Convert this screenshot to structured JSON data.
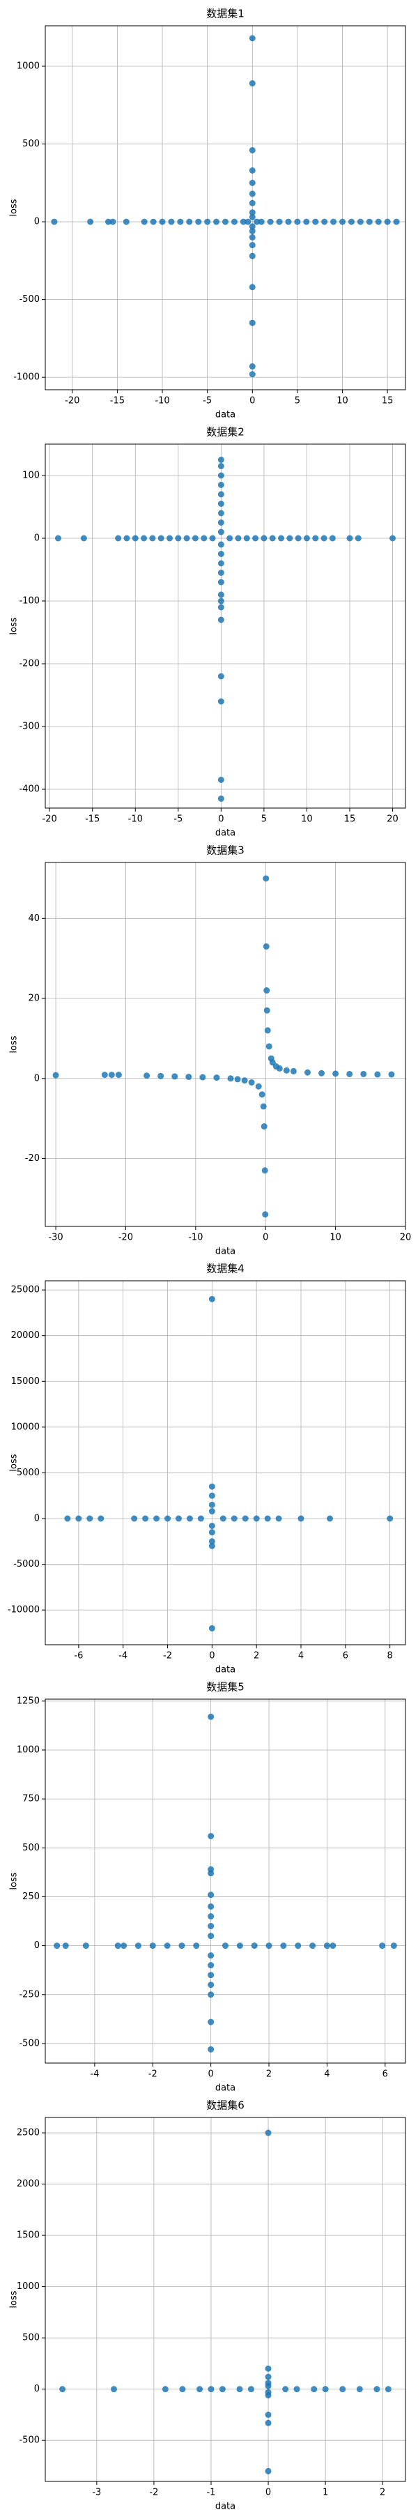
{
  "chart_data": [
    {
      "type": "scatter",
      "title": "数据集1",
      "xlabel": "data",
      "ylabel": "loss",
      "color": "#1f77b4",
      "grid": true,
      "x": [
        -22,
        -18,
        -16,
        -15.5,
        -14,
        -12,
        -11,
        -10,
        -9,
        -8,
        -7,
        -6,
        -5,
        -4,
        -3,
        -2,
        -1,
        -0.5,
        0.5,
        1,
        2,
        3,
        4,
        5,
        6,
        7,
        8,
        9,
        10,
        11,
        12,
        13,
        14,
        15,
        16,
        0,
        0,
        0,
        0,
        0,
        0,
        0,
        0,
        0,
        0,
        0,
        0,
        0,
        0,
        0,
        0,
        0,
        0
      ],
      "values": [
        0,
        0,
        0,
        0,
        0,
        0,
        0,
        0,
        0,
        0,
        0,
        0,
        0,
        0,
        0,
        0,
        0,
        0,
        0,
        0,
        0,
        0,
        0,
        0,
        0,
        0,
        0,
        0,
        0,
        0,
        0,
        0,
        0,
        0,
        0,
        1180,
        890,
        460,
        330,
        250,
        180,
        120,
        60,
        30,
        -30,
        -60,
        -100,
        -150,
        -220,
        -420,
        -650,
        -930,
        -980
      ],
      "xlim": [
        -23,
        17
      ],
      "xticks": [
        -20,
        -15,
        -10,
        -5,
        0,
        5,
        10,
        15
      ],
      "ylim": [
        -1080,
        1260
      ],
      "yticks": [
        -1000,
        -500,
        0,
        500,
        1000
      ]
    },
    {
      "type": "scatter",
      "title": "数据集2",
      "xlabel": "data",
      "ylabel": "loss",
      "color": "#1f77b4",
      "grid": true,
      "x": [
        -19,
        -16,
        -12,
        -11,
        -10,
        -9,
        -8,
        -7,
        -6,
        -5,
        -4,
        -3,
        -2,
        -1,
        1,
        2,
        3,
        4,
        5,
        6,
        7,
        8,
        9,
        10,
        11,
        12,
        13,
        15,
        16,
        20,
        0,
        0,
        0,
        0,
        0,
        0,
        0,
        0,
        0,
        0,
        0,
        0,
        0,
        0,
        0,
        0,
        0,
        0,
        0,
        0,
        0,
        0
      ],
      "values": [
        0,
        0,
        0,
        0,
        0,
        0,
        0,
        0,
        0,
        0,
        0,
        0,
        0,
        0,
        0,
        0,
        0,
        0,
        0,
        0,
        0,
        0,
        0,
        0,
        0,
        0,
        0,
        0,
        0,
        0,
        125,
        115,
        100,
        85,
        70,
        55,
        40,
        25,
        10,
        -10,
        -25,
        -40,
        -55,
        -70,
        -90,
        -100,
        -110,
        -130,
        -220,
        -260,
        -385,
        -415
      ],
      "xlim": [
        -20.5,
        21.5
      ],
      "xticks": [
        -20,
        -15,
        -10,
        -5,
        0,
        5,
        10,
        15,
        20
      ],
      "ylim": [
        -430,
        150
      ],
      "yticks": [
        -400,
        -300,
        -200,
        -100,
        0,
        100
      ]
    },
    {
      "type": "scatter",
      "title": "数据集3",
      "xlabel": "data",
      "ylabel": "loss",
      "color": "#1f77b4",
      "grid": true,
      "x": [
        -30,
        -23,
        -22,
        -21,
        -17,
        -15,
        -13,
        -11,
        -9,
        -7,
        -5,
        -4,
        -3,
        -2,
        -1,
        -0.5,
        -0.3,
        -0.2,
        -0.1,
        -0.05,
        0.05,
        0.1,
        0.15,
        0.2,
        0.3,
        0.5,
        0.8,
        1,
        1.5,
        2,
        3,
        4,
        6,
        8,
        10,
        12,
        14,
        16,
        18
      ],
      "values": [
        0.8,
        0.9,
        0.9,
        0.9,
        0.7,
        0.6,
        0.5,
        0.4,
        0.3,
        0.2,
        0,
        -0.2,
        -0.5,
        -1,
        -2,
        -4,
        -7,
        -12,
        -23,
        -34,
        50,
        33,
        22,
        17,
        12,
        8,
        5,
        4,
        3,
        2.5,
        2,
        1.8,
        1.5,
        1.3,
        1.2,
        1.1,
        1.1,
        1,
        1
      ],
      "xlim": [
        -31.5,
        20
      ],
      "xticks": [
        -30,
        -20,
        -10,
        0,
        10,
        20
      ],
      "ylim": [
        -37,
        54
      ],
      "yticks": [
        -20,
        0,
        20,
        40
      ]
    },
    {
      "type": "scatter",
      "title": "数据集4",
      "xlabel": "data",
      "ylabel": "loss",
      "color": "#1f77b4",
      "grid": true,
      "x": [
        -6.5,
        -6,
        -5.5,
        -5,
        -3.5,
        -3,
        -2.5,
        -2,
        -1.5,
        -1,
        -0.5,
        0.5,
        1,
        1.5,
        2,
        2.5,
        3,
        4,
        5.3,
        8,
        0,
        0,
        0,
        0,
        0,
        0,
        0,
        0,
        0,
        0
      ],
      "values": [
        0,
        0,
        0,
        0,
        0,
        0,
        0,
        0,
        0,
        0,
        0,
        0,
        0,
        0,
        0,
        0,
        0,
        0,
        0,
        0,
        24000,
        3500,
        2500,
        1500,
        800,
        -800,
        -1500,
        -2500,
        -3000,
        -12000
      ],
      "xlim": [
        -7.5,
        8.7
      ],
      "xticks": [
        -6,
        -4,
        -2,
        0,
        2,
        4,
        6,
        8
      ],
      "ylim": [
        -13800,
        26000
      ],
      "yticks": [
        -10000,
        -5000,
        0,
        5000,
        10000,
        15000,
        20000,
        25000
      ]
    },
    {
      "type": "scatter",
      "title": "数据集5",
      "xlabel": "data",
      "ylabel": "loss",
      "color": "#1f77b4",
      "grid": true,
      "x": [
        -5.3,
        -5,
        -4.3,
        -3.2,
        -3,
        -2.5,
        -2,
        -1.5,
        -1,
        -0.5,
        0.5,
        1,
        1.5,
        2,
        2.5,
        3,
        3.5,
        4,
        4.2,
        5.9,
        6.3,
        0,
        0,
        0,
        0,
        0,
        0,
        0,
        0,
        0,
        0,
        0,
        0,
        0,
        0,
        0,
        0
      ],
      "values": [
        0,
        0,
        0,
        0,
        0,
        0,
        0,
        0,
        0,
        0,
        0,
        0,
        0,
        0,
        0,
        0,
        0,
        0,
        0,
        0,
        0,
        1170,
        560,
        390,
        370,
        260,
        200,
        150,
        100,
        50,
        -50,
        -100,
        -150,
        -200,
        -250,
        -390,
        -530
      ],
      "xlim": [
        -5.7,
        6.7
      ],
      "xticks": [
        -4,
        -2,
        0,
        2,
        4,
        6
      ],
      "ylim": [
        -600,
        1260
      ],
      "yticks": [
        -500,
        -250,
        0,
        250,
        500,
        750,
        1000,
        1250
      ]
    },
    {
      "type": "scatter",
      "title": "数据集6",
      "xlabel": "data",
      "ylabel": "loss",
      "color": "#1f77b4",
      "grid": true,
      "x": [
        -3.6,
        -2.7,
        -1.8,
        -1.5,
        -1.2,
        -1,
        -0.8,
        -0.5,
        -0.3,
        0.3,
        0.5,
        0.8,
        1,
        1.3,
        1.6,
        1.9,
        2.1,
        0,
        0,
        0,
        0,
        0,
        0,
        0,
        0,
        0,
        0
      ],
      "values": [
        0,
        0,
        0,
        0,
        0,
        0,
        0,
        0,
        0,
        0,
        0,
        0,
        0,
        0,
        0,
        0,
        0,
        2500,
        200,
        120,
        60,
        30,
        -30,
        -60,
        -250,
        -330,
        -800
      ],
      "xlim": [
        -3.9,
        2.4
      ],
      "xticks": [
        -3,
        -2,
        -1,
        0,
        1,
        2
      ],
      "ylim": [
        -900,
        2650
      ],
      "yticks": [
        -500,
        0,
        500,
        1000,
        1500,
        2000,
        2500
      ]
    }
  ]
}
